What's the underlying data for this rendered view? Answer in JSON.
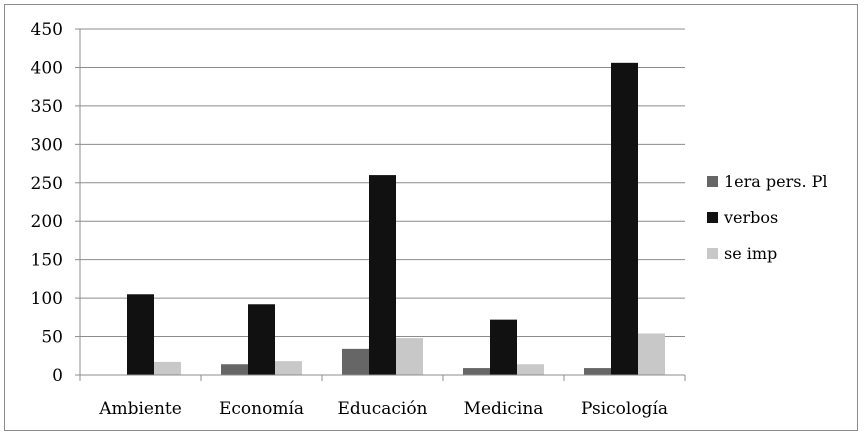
{
  "chart_data": {
    "type": "bar",
    "categories": [
      "Ambiente",
      "Economía",
      "Educación",
      "Medicina",
      "Psicología"
    ],
    "series": [
      {
        "name": "1era pers. Pl",
        "color": "#666666",
        "values": [
          0,
          14,
          34,
          9,
          9
        ]
      },
      {
        "name": "verbos",
        "color": "#111111",
        "values": [
          105,
          92,
          260,
          72,
          406
        ]
      },
      {
        "name": "se imp",
        "color": "#c8c8c8",
        "values": [
          17,
          18,
          48,
          14,
          54
        ]
      }
    ],
    "yticks": [
      "0",
      "50",
      "100",
      "150",
      "200",
      "250",
      "300",
      "350",
      "400",
      "450"
    ],
    "ylim": [
      0,
      450
    ],
    "grid": true,
    "legend_position": "right",
    "title": "",
    "xlabel": "",
    "ylabel": ""
  }
}
